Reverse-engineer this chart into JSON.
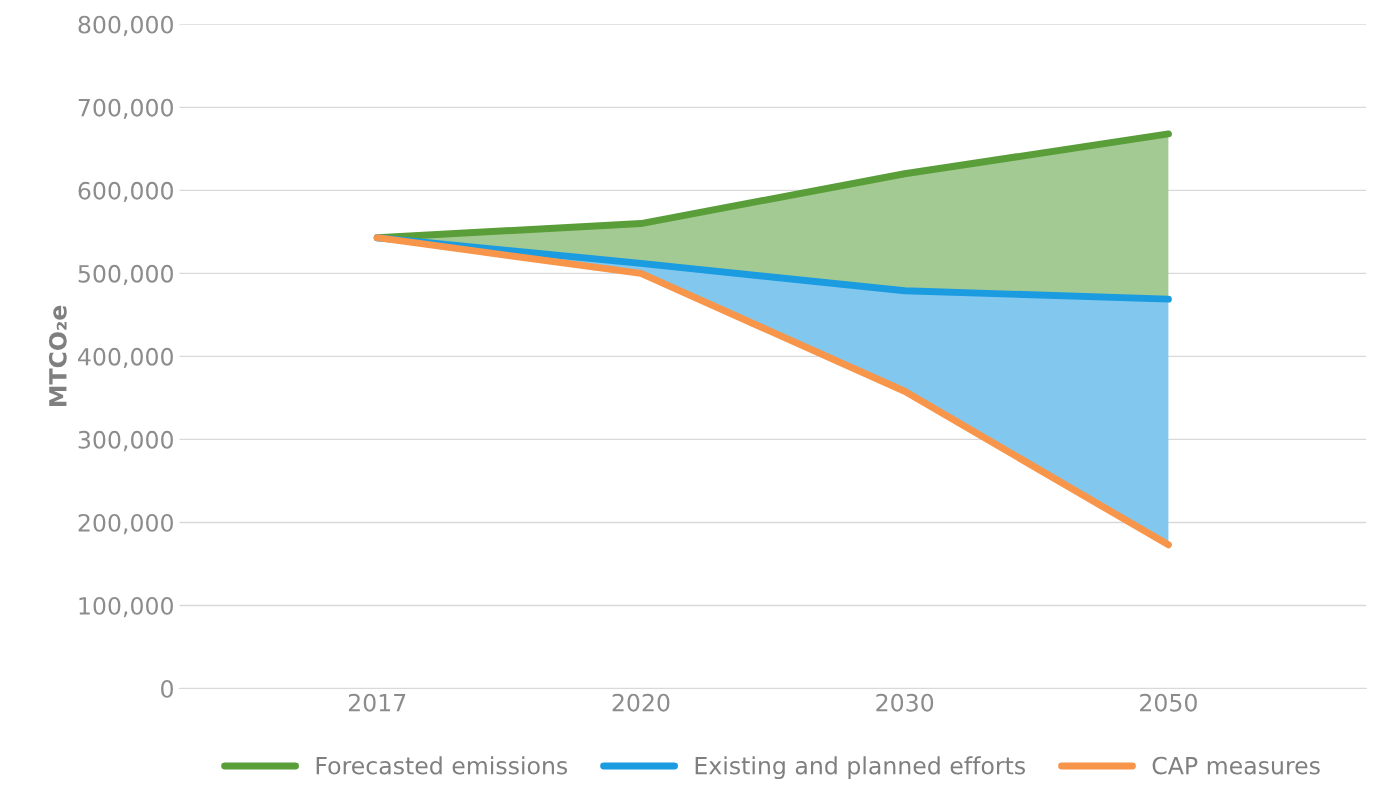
{
  "chart_data": {
    "type": "line",
    "ylabel": "MTCO₂e",
    "categories": [
      "2017",
      "2020",
      "2030",
      "2050"
    ],
    "series": [
      {
        "name": "Forecasted emissions",
        "color": "#5a9e3a",
        "values": [
          543000,
          560000,
          620000,
          668000
        ],
        "lower": [
          543000,
          512000,
          479000,
          469000
        ],
        "upper": [
          543000,
          560000,
          620000,
          668000
        ]
      },
      {
        "name": "Existing and planned efforts",
        "color": "#1b9be0",
        "values": [
          543000,
          512000,
          479000,
          469000
        ],
        "lower": [
          543000,
          500000,
          358000,
          173000
        ],
        "upper": [
          543000,
          512000,
          479000,
          469000
        ]
      },
      {
        "name": "CAP measures",
        "color": "#f7964a",
        "values": [
          543000,
          500000,
          358000,
          173000
        ]
      }
    ],
    "ylim": [
      0,
      800000
    ],
    "yticks": [
      {
        "value": 0,
        "label": "0"
      },
      {
        "value": 100000,
        "label": "100,000"
      },
      {
        "value": 200000,
        "label": "200,000"
      },
      {
        "value": 300000,
        "label": "300,000"
      },
      {
        "value": 400000,
        "label": "400,000"
      },
      {
        "value": 500000,
        "label": "500,000"
      },
      {
        "value": 600000,
        "label": "600,000"
      },
      {
        "value": 700000,
        "label": "700,000"
      },
      {
        "value": 800000,
        "label": "800,000"
      }
    ],
    "grid": "y",
    "legend": "bottom",
    "marker": "none",
    "line_style": "solid"
  }
}
